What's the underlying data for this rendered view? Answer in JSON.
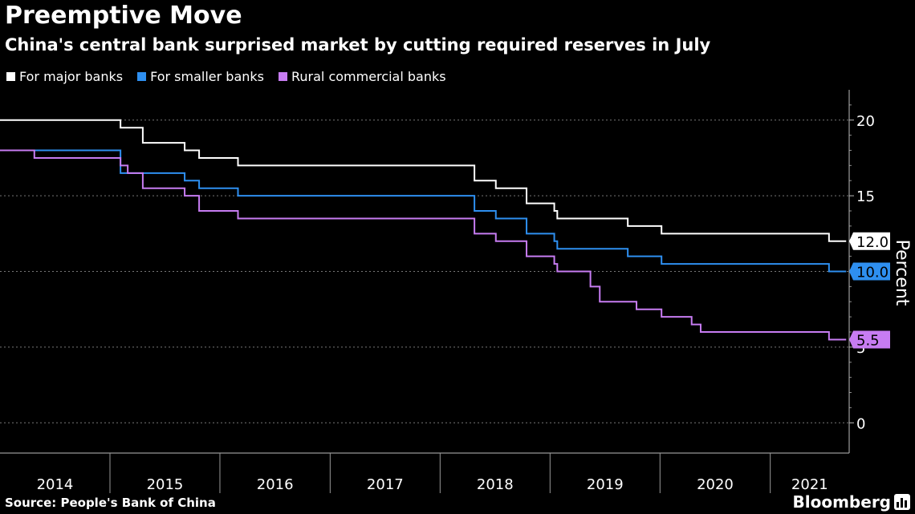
{
  "chart_data": {
    "type": "line",
    "title": "Preemptive Move",
    "subtitle": "China's central bank surprised market by cutting required reserves in July",
    "ylabel": "Percent",
    "ylim": [
      -2,
      22
    ],
    "yticks": [
      0,
      5,
      10,
      15,
      20
    ],
    "xlim": [
      "2014-01-01",
      "2021-09-20"
    ],
    "year_labels": [
      "2014",
      "2015",
      "2016",
      "2017",
      "2018",
      "2019",
      "2020",
      "2021"
    ],
    "legend_position": "top-left",
    "grid": "horizontal dotted",
    "end_labels": [
      "12.0",
      "10.0",
      "5.5"
    ],
    "series": [
      {
        "name": "For major banks",
        "color": "#ffffff",
        "points": [
          [
            "2014-01-01",
            20.0
          ],
          [
            "2015-02-05",
            19.5
          ],
          [
            "2015-04-20",
            18.5
          ],
          [
            "2015-09-06",
            18.0
          ],
          [
            "2015-10-24",
            17.5
          ],
          [
            "2016-03-01",
            17.0
          ],
          [
            "2018-04-25",
            16.0
          ],
          [
            "2018-07-05",
            15.5
          ],
          [
            "2018-10-15",
            14.5
          ],
          [
            "2019-01-15",
            14.0
          ],
          [
            "2019-01-25",
            13.5
          ],
          [
            "2019-09-16",
            13.0
          ],
          [
            "2020-01-06",
            12.5
          ],
          [
            "2021-07-15",
            12.0
          ],
          [
            "2021-09-10",
            12.0
          ]
        ]
      },
      {
        "name": "For smaller banks",
        "color": "#2e8ff0",
        "points": [
          [
            "2014-01-01",
            18.0
          ],
          [
            "2015-02-05",
            16.5
          ],
          [
            "2015-09-06",
            16.0
          ],
          [
            "2015-10-24",
            15.5
          ],
          [
            "2016-03-01",
            15.0
          ],
          [
            "2018-04-25",
            14.0
          ],
          [
            "2018-07-05",
            13.5
          ],
          [
            "2018-10-15",
            12.5
          ],
          [
            "2019-01-15",
            12.0
          ],
          [
            "2019-01-25",
            11.5
          ],
          [
            "2019-09-16",
            11.0
          ],
          [
            "2020-01-06",
            10.5
          ],
          [
            "2021-07-15",
            10.0
          ],
          [
            "2021-09-10",
            10.0
          ]
        ]
      },
      {
        "name": "Rural commercial banks",
        "color": "#c77cf2",
        "points": [
          [
            "2014-01-01",
            18.0
          ],
          [
            "2014-04-25",
            17.5
          ],
          [
            "2015-02-05",
            17.0
          ],
          [
            "2015-03-01",
            16.5
          ],
          [
            "2015-04-20",
            15.5
          ],
          [
            "2015-09-06",
            15.0
          ],
          [
            "2015-10-24",
            14.0
          ],
          [
            "2016-03-01",
            13.5
          ],
          [
            "2018-04-25",
            12.5
          ],
          [
            "2018-07-05",
            12.0
          ],
          [
            "2018-10-15",
            11.0
          ],
          [
            "2019-01-15",
            10.5
          ],
          [
            "2019-01-25",
            10.0
          ],
          [
            "2019-05-15",
            9.0
          ],
          [
            "2019-06-15",
            8.0
          ],
          [
            "2019-10-15",
            7.5
          ],
          [
            "2019-11-15",
            7.5
          ],
          [
            "2020-01-06",
            7.0
          ],
          [
            "2020-04-15",
            6.5
          ],
          [
            "2020-05-15",
            6.0
          ],
          [
            "2021-07-15",
            5.5
          ],
          [
            "2021-09-10",
            5.5
          ]
        ]
      }
    ]
  },
  "source": "Source: People's Bank of China",
  "brand": "Bloomberg"
}
